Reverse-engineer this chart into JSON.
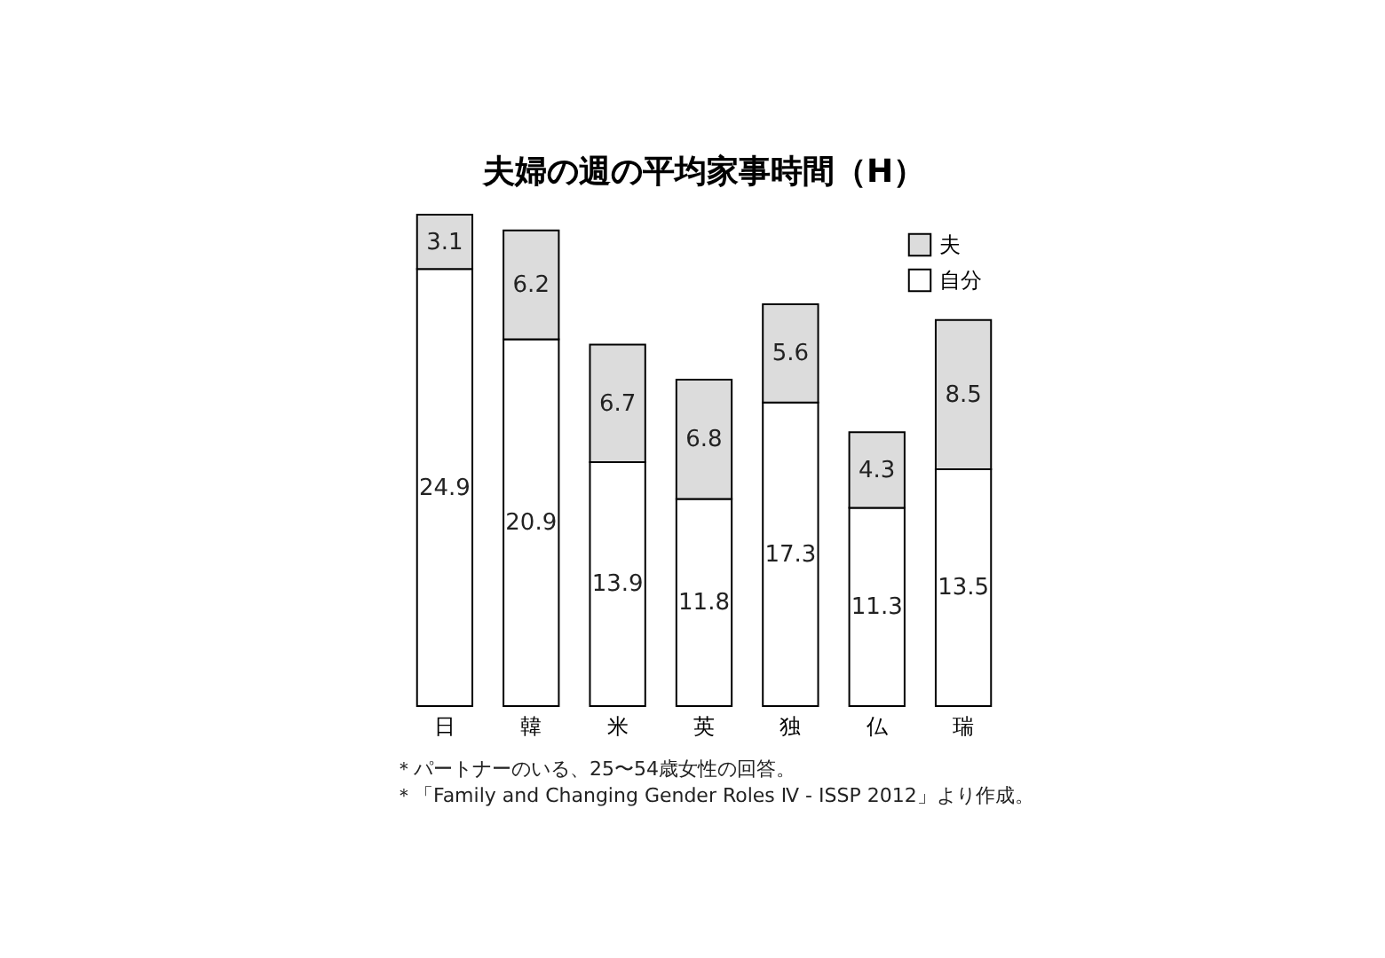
{
  "chart_data": {
    "type": "bar",
    "title": "夫婦の週の平均家事時間（H）",
    "categories": [
      "日",
      "韓",
      "米",
      "英",
      "独",
      "仏",
      "瑞"
    ],
    "stacked": true,
    "data_labels": true,
    "legend": "top right",
    "grid": false,
    "series": [
      {
        "name": "自分",
        "color": "#ffffff",
        "values": [
          24.9,
          20.9,
          13.9,
          11.8,
          17.3,
          11.3,
          13.5
        ]
      },
      {
        "name": "夫",
        "color": "#dcdcdc",
        "values": [
          3.1,
          6.2,
          6.7,
          6.8,
          5.6,
          4.3,
          8.5
        ]
      }
    ],
    "annotations": [
      "＊パートナーのいる、25〜54歳女性の回答。",
      "＊「Family and Changing Gender Roles Ⅳ - ISSP 2012」より作成。"
    ]
  }
}
